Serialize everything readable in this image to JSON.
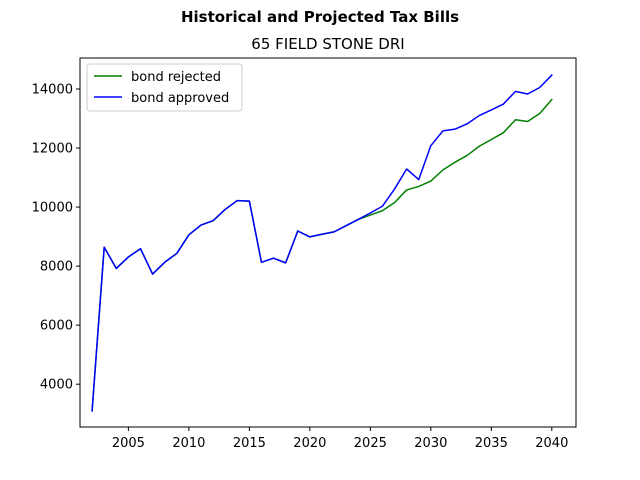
{
  "figure": {
    "suptitle": "Historical and Projected Tax Bills"
  },
  "chart_data": {
    "type": "line",
    "title": "65 FIELD STONE DRI",
    "xlabel": "",
    "ylabel": "",
    "xlim": [
      2001,
      2042
    ],
    "ylim": [
      2550,
      15050
    ],
    "xticks": [
      2005,
      2010,
      2015,
      2020,
      2025,
      2030,
      2035,
      2040
    ],
    "yticks": [
      4000,
      6000,
      8000,
      10000,
      12000,
      14000
    ],
    "grid": false,
    "legend_position": "upper-left",
    "series": [
      {
        "name": "bond rejected",
        "color": "#008000",
        "points": [
          [
            2002,
            3100
          ],
          [
            2003,
            8640
          ],
          [
            2004,
            7920
          ],
          [
            2005,
            8310
          ],
          [
            2006,
            8590
          ],
          [
            2007,
            7730
          ],
          [
            2008,
            8130
          ],
          [
            2009,
            8430
          ],
          [
            2010,
            9060
          ],
          [
            2011,
            9390
          ],
          [
            2012,
            9540
          ],
          [
            2013,
            9920
          ],
          [
            2014,
            10220
          ],
          [
            2015,
            10200
          ],
          [
            2016,
            8130
          ],
          [
            2017,
            8270
          ],
          [
            2018,
            8110
          ],
          [
            2019,
            9190
          ],
          [
            2020,
            8990
          ],
          [
            2021,
            9080
          ],
          [
            2022,
            9160
          ],
          [
            2023,
            9370
          ],
          [
            2024,
            9580
          ],
          [
            2025,
            9730
          ],
          [
            2026,
            9880
          ],
          [
            2027,
            10150
          ],
          [
            2028,
            10580
          ],
          [
            2029,
            10700
          ],
          [
            2030,
            10880
          ],
          [
            2031,
            11260
          ],
          [
            2032,
            11520
          ],
          [
            2033,
            11750
          ],
          [
            2034,
            12060
          ],
          [
            2035,
            12290
          ],
          [
            2036,
            12520
          ],
          [
            2037,
            12960
          ],
          [
            2038,
            12900
          ],
          [
            2039,
            13170
          ],
          [
            2040,
            13640
          ]
        ]
      },
      {
        "name": "bond approved",
        "color": "#0000ff",
        "points": [
          [
            2002,
            3100
          ],
          [
            2003,
            8640
          ],
          [
            2004,
            7920
          ],
          [
            2005,
            8310
          ],
          [
            2006,
            8590
          ],
          [
            2007,
            7730
          ],
          [
            2008,
            8130
          ],
          [
            2009,
            8430
          ],
          [
            2010,
            9060
          ],
          [
            2011,
            9390
          ],
          [
            2012,
            9540
          ],
          [
            2013,
            9920
          ],
          [
            2014,
            10220
          ],
          [
            2015,
            10200
          ],
          [
            2016,
            8130
          ],
          [
            2017,
            8270
          ],
          [
            2018,
            8110
          ],
          [
            2019,
            9190
          ],
          [
            2020,
            8990
          ],
          [
            2021,
            9080
          ],
          [
            2022,
            9160
          ],
          [
            2023,
            9370
          ],
          [
            2024,
            9580
          ],
          [
            2025,
            9800
          ],
          [
            2026,
            10030
          ],
          [
            2027,
            10610
          ],
          [
            2028,
            11290
          ],
          [
            2029,
            10930
          ],
          [
            2030,
            12080
          ],
          [
            2031,
            12580
          ],
          [
            2032,
            12640
          ],
          [
            2033,
            12820
          ],
          [
            2034,
            13100
          ],
          [
            2035,
            13290
          ],
          [
            2036,
            13490
          ],
          [
            2037,
            13920
          ],
          [
            2038,
            13830
          ],
          [
            2039,
            14050
          ],
          [
            2040,
            14470
          ]
        ]
      }
    ]
  }
}
